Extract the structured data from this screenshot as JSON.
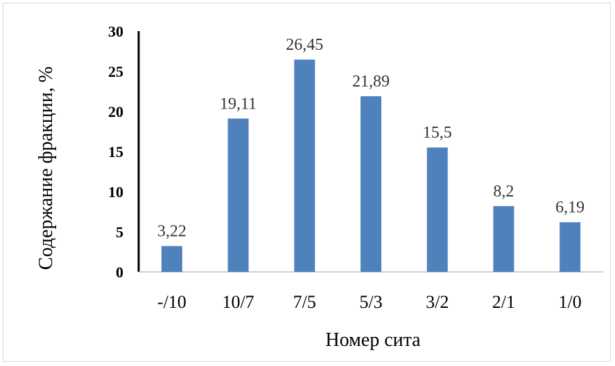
{
  "chart_data": {
    "type": "bar",
    "categories": [
      "-/10",
      "10/7",
      "7/5",
      "5/3",
      "3/2",
      "2/1",
      "1/0"
    ],
    "values": [
      3.22,
      19.11,
      26.45,
      21.89,
      15.5,
      8.2,
      6.19
    ],
    "value_labels": [
      "3,22",
      "19,11",
      "26,45",
      "21,89",
      "15,5",
      "8,2",
      "6,19"
    ],
    "xlabel": "Номер сита",
    "ylabel": "Содержание фракции, %",
    "ylim": [
      0,
      30
    ],
    "yticks": [
      "0",
      "5",
      "10",
      "15",
      "20",
      "25",
      "30"
    ],
    "bar_color": "#4f81bd",
    "grid": false,
    "legend": "none"
  }
}
